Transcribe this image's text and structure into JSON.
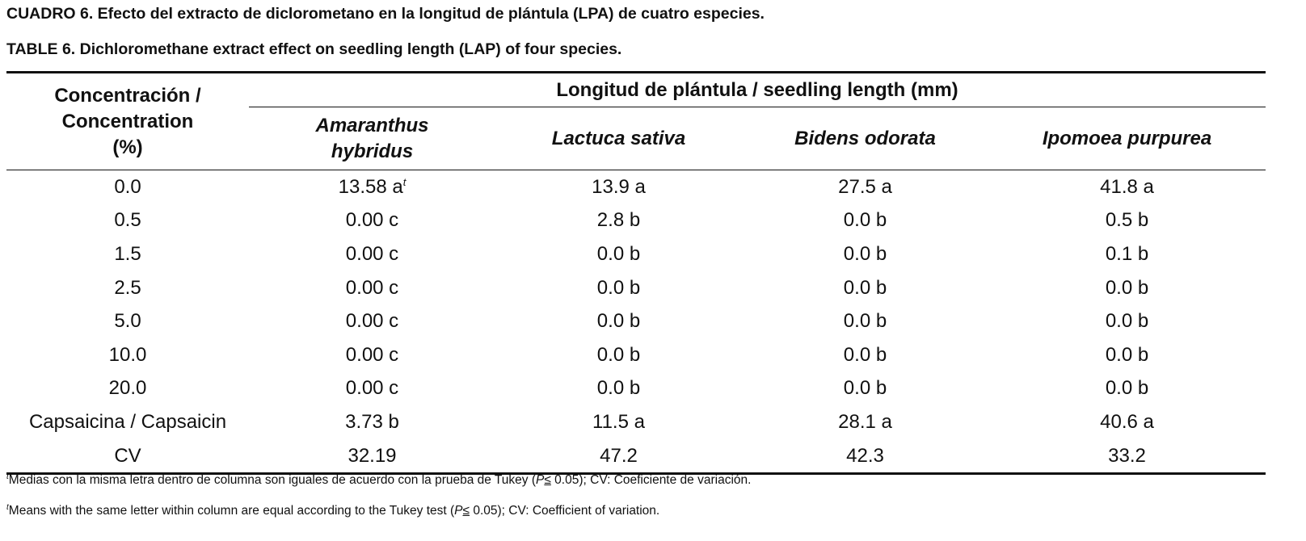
{
  "titles": {
    "es": "CUADRO 6. Efecto del extracto de diclorometano en la longitud de plántula (LPA) de cuatro especies.",
    "en": "TABLE 6. Dichloromethane extract effect on seedling length (LAP) of four species."
  },
  "table": {
    "row_header": [
      "Concentración /",
      "Concentration",
      "(%)"
    ],
    "span_header": "Longitud de plántula / seedling length (mm)",
    "columns": [
      [
        "Amaranthus",
        "hybridus"
      ],
      [
        "Lactuca sativa"
      ],
      [
        "Bidens odorata"
      ],
      [
        "Ipomoea purpurea"
      ]
    ],
    "footnote_marker": "t",
    "rows": [
      {
        "label": "0.0",
        "cells": [
          "13.58 a",
          "13.9 a",
          "27.5 a",
          "41.8 a"
        ]
      },
      {
        "label": "0.5",
        "cells": [
          "0.00 c",
          "2.8 b",
          "0.0 b",
          "0.5 b"
        ]
      },
      {
        "label": "1.5",
        "cells": [
          "0.00 c",
          "0.0 b",
          "0.0 b",
          "0.1 b"
        ]
      },
      {
        "label": "2.5",
        "cells": [
          "0.00 c",
          "0.0 b",
          "0.0 b",
          "0.0 b"
        ]
      },
      {
        "label": "5.0",
        "cells": [
          "0.00 c",
          "0.0 b",
          "0.0 b",
          "0.0 b"
        ]
      },
      {
        "label": "10.0",
        "cells": [
          "0.00 c",
          "0.0 b",
          "0.0 b",
          "0.0 b"
        ]
      },
      {
        "label": "20.0",
        "cells": [
          "0.00 c",
          "0.0 b",
          "0.0 b",
          "0.0 b"
        ]
      },
      {
        "label": "Capsaicina / Capsaicin",
        "cells": [
          "3.73 b",
          "11.5 a",
          "28.1 a",
          "40.6 a"
        ]
      },
      {
        "label": "CV",
        "cells": [
          "32.19",
          "47.2",
          "42.3",
          "33.2"
        ]
      }
    ]
  },
  "footnotes": [
    {
      "before": "Medias con la misma letra dentro de columna son iguales de acuerdo con la prueba de Tukey (",
      "p": "P",
      "le": "≤",
      "after": " 0.05); CV: Coeficiente de variación."
    },
    {
      "before": "Means with the same letter within column are equal according to the Tukey test (",
      "p": "P",
      "le": "≤",
      "after": " 0.05); CV: Coefficient of variation."
    }
  ]
}
